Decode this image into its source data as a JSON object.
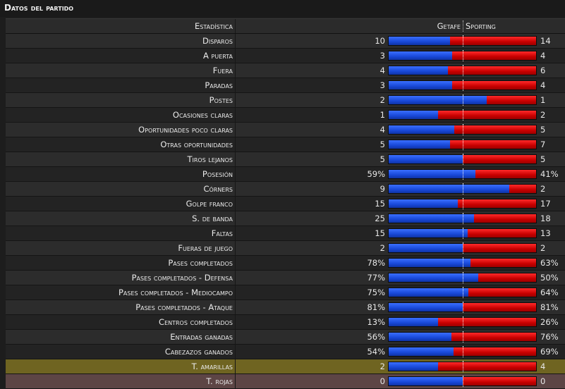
{
  "panel": {
    "title": "Datos del partido"
  },
  "header": {
    "stat": "Estadística",
    "home_team": "Getafe",
    "away_team": "Sporting"
  },
  "colors": {
    "home": "#2457e6",
    "away": "#e01010",
    "highlight_yellow": "#6f6421",
    "highlight_red": "#5d4545"
  },
  "stats": [
    {
      "label": "Disparos",
      "home": "10",
      "away": "14",
      "home_share": 0.417
    },
    {
      "label": "A puerta",
      "home": "3",
      "away": "4",
      "home_share": 0.429
    },
    {
      "label": "Fuera",
      "home": "4",
      "away": "6",
      "home_share": 0.4
    },
    {
      "label": "Paradas",
      "home": "3",
      "away": "4",
      "home_share": 0.429
    },
    {
      "label": "Postes",
      "home": "2",
      "away": "1",
      "home_share": 0.667
    },
    {
      "label": "Ocasiones claras",
      "home": "1",
      "away": "2",
      "home_share": 0.333
    },
    {
      "label": "Oportunidades poco claras",
      "home": "4",
      "away": "5",
      "home_share": 0.444
    },
    {
      "label": "Otras oportunidades",
      "home": "5",
      "away": "7",
      "home_share": 0.417
    },
    {
      "label": "Tiros lejanos",
      "home": "5",
      "away": "5",
      "home_share": 0.5
    },
    {
      "label": "Posesión",
      "home": "59%",
      "away": "41%",
      "home_share": 0.59
    },
    {
      "label": "Córners",
      "home": "9",
      "away": "2",
      "home_share": 0.818
    },
    {
      "label": "Golpe franco",
      "home": "15",
      "away": "17",
      "home_share": 0.469
    },
    {
      "label": "S. de banda",
      "home": "25",
      "away": "18",
      "home_share": 0.581
    },
    {
      "label": "Faltas",
      "home": "15",
      "away": "13",
      "home_share": 0.536
    },
    {
      "label": "Fueras de juego",
      "home": "2",
      "away": "2",
      "home_share": 0.5
    },
    {
      "label": "Pases completados",
      "home": "78%",
      "away": "63%",
      "home_share": 0.553
    },
    {
      "label": "Pases completados - Defensa",
      "home": "77%",
      "away": "50%",
      "home_share": 0.606
    },
    {
      "label": "Pases completados - Mediocampo",
      "home": "75%",
      "away": "64%",
      "home_share": 0.54
    },
    {
      "label": "Pases completados - Ataque",
      "home": "81%",
      "away": "81%",
      "home_share": 0.5
    },
    {
      "label": "Centros completados",
      "home": "13%",
      "away": "26%",
      "home_share": 0.333
    },
    {
      "label": "Entradas ganadas",
      "home": "56%",
      "away": "76%",
      "home_share": 0.424
    },
    {
      "label": "Cabezazos ganados",
      "home": "54%",
      "away": "69%",
      "home_share": 0.439
    },
    {
      "label": "T. amarillas",
      "home": "2",
      "away": "4",
      "home_share": 0.333,
      "highlight": "yellow"
    },
    {
      "label": "T. rojas",
      "home": "0",
      "away": "0",
      "home_share": 0.5,
      "highlight": "red"
    }
  ]
}
